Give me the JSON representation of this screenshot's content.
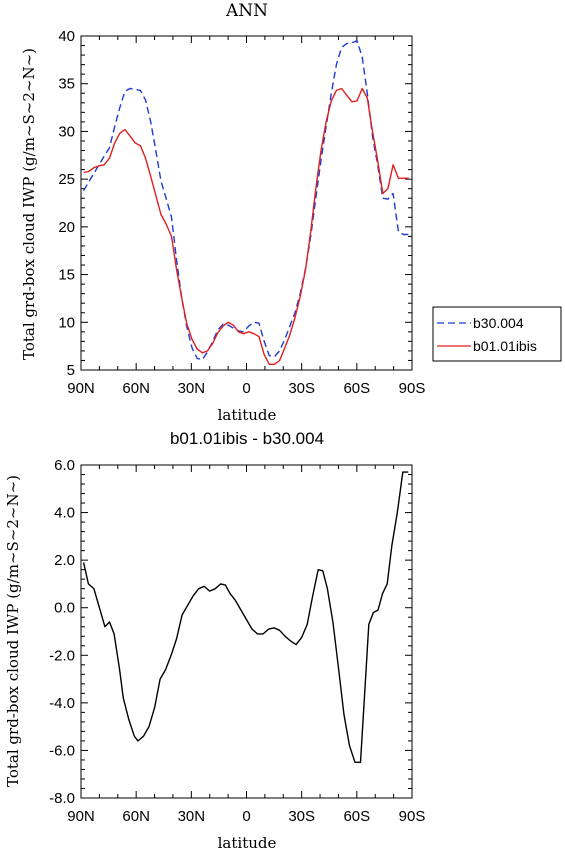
{
  "chart_data": [
    {
      "type": "line",
      "title": "ANN",
      "xlabel": "latitude",
      "ylabel": "Total grd-box cloud IWP (g/m~S~2~N~)",
      "xlim": [
        -90,
        90
      ],
      "ylim": [
        5,
        40
      ],
      "x_ticks": [
        -90,
        -60,
        -30,
        0,
        30,
        60,
        90
      ],
      "x_tick_labels": [
        "90N",
        "60N",
        "30N",
        "0",
        "30S",
        "60S",
        "90S"
      ],
      "y_ticks": [
        5,
        10,
        15,
        20,
        25,
        30,
        35,
        40
      ],
      "y_tick_labels": [
        "5",
        "10",
        "15",
        "20",
        "25",
        "30",
        "35",
        "40"
      ],
      "legend_position": "right",
      "series": [
        {
          "name": "b30.004",
          "color": "#1f3bd6",
          "dash": "dashed",
          "x": [
            -88.6,
            -85.8,
            -83.0,
            -80.2,
            -77.4,
            -74.5,
            -71.7,
            -68.9,
            -66.1,
            -63.3,
            -60.5,
            -57.7,
            -54.9,
            -52.1,
            -49.3,
            -46.5,
            -43.7,
            -40.8,
            -38.0,
            -35.2,
            -32.4,
            -29.6,
            -26.8,
            -24.0,
            -21.2,
            -18.4,
            -15.6,
            -12.8,
            -10.0,
            -7.2,
            -4.4,
            -1.6,
            1.2,
            4.0,
            6.8,
            9.6,
            12.4,
            15.2,
            18.0,
            20.8,
            23.6,
            26.4,
            29.2,
            32.1,
            34.9,
            37.7,
            40.5,
            43.3,
            46.1,
            48.9,
            51.7,
            54.5,
            57.3,
            60.1,
            62.9,
            65.7,
            68.5,
            71.3,
            74.1,
            76.9,
            79.7,
            82.6,
            85.4,
            88.2
          ],
          "y": [
            23.8,
            24.7,
            25.6,
            26.5,
            27.4,
            28.3,
            30.5,
            32.5,
            34.2,
            34.5,
            34.4,
            34.3,
            33.3,
            31.0,
            28.0,
            24.8,
            23.0,
            21.0,
            16.5,
            12.5,
            9.5,
            7.3,
            6.2,
            6.1,
            6.9,
            8.0,
            9.2,
            9.8,
            9.7,
            9.4,
            9.1,
            9.0,
            9.6,
            10.0,
            9.9,
            8.0,
            6.5,
            6.4,
            7.0,
            8.2,
            9.6,
            11.0,
            13.0,
            15.6,
            19.0,
            23.0,
            27.0,
            30.5,
            34.0,
            37.0,
            38.8,
            39.2,
            39.3,
            39.5,
            37.8,
            34.0,
            29.5,
            26.5,
            23.0,
            22.9,
            23.5,
            19.5,
            19.2,
            19.2
          ]
        },
        {
          "name": "b01.01ibis",
          "color": "#e02020",
          "dash": "solid",
          "x": [
            -88.6,
            -85.8,
            -83.0,
            -80.2,
            -77.4,
            -74.5,
            -71.7,
            -68.9,
            -66.1,
            -63.3,
            -60.5,
            -57.7,
            -54.9,
            -52.1,
            -49.3,
            -46.5,
            -43.7,
            -40.8,
            -38.0,
            -35.2,
            -32.4,
            -29.6,
            -26.8,
            -24.0,
            -21.2,
            -18.4,
            -15.6,
            -12.8,
            -10.0,
            -7.2,
            -4.4,
            -1.6,
            1.2,
            4.0,
            6.8,
            9.6,
            12.4,
            15.2,
            18.0,
            20.8,
            23.6,
            26.4,
            29.2,
            32.1,
            34.9,
            37.7,
            40.5,
            43.3,
            46.1,
            48.9,
            51.7,
            54.5,
            57.3,
            60.1,
            62.9,
            65.7,
            68.5,
            71.3,
            74.1,
            76.9,
            79.7,
            82.6,
            85.4,
            88.2
          ],
          "y": [
            25.7,
            25.8,
            26.2,
            26.4,
            26.5,
            27.2,
            28.8,
            29.8,
            30.2,
            29.5,
            28.8,
            28.5,
            27.2,
            25.3,
            23.3,
            21.3,
            20.3,
            19.0,
            15.5,
            12.5,
            9.8,
            8.2,
            7.2,
            6.8,
            7.0,
            7.8,
            8.9,
            9.6,
            10.0,
            9.7,
            9.0,
            8.8,
            9.0,
            8.8,
            8.5,
            6.6,
            5.6,
            5.6,
            6.0,
            7.3,
            8.7,
            10.5,
            12.7,
            15.5,
            19.5,
            24.0,
            28.0,
            31.0,
            33.2,
            34.3,
            34.5,
            33.8,
            33.1,
            33.2,
            34.5,
            33.5,
            30.0,
            27.0,
            23.5,
            24.0,
            26.5,
            25.1,
            25.1,
            25.1
          ]
        }
      ]
    },
    {
      "type": "line",
      "title": "b01.01ibis - b30.004",
      "xlabel": "latitude",
      "ylabel": "Total grd-box cloud IWP (g/m~S~2~N~)",
      "xlim": [
        -90,
        90
      ],
      "ylim": [
        -8,
        6
      ],
      "x_ticks": [
        -90,
        -60,
        -30,
        0,
        30,
        60,
        90
      ],
      "x_tick_labels": [
        "90N",
        "60N",
        "30N",
        "0",
        "30S",
        "60S",
        "90S"
      ],
      "y_ticks": [
        -8,
        -6,
        -4,
        -2,
        0,
        2,
        4,
        6
      ],
      "y_tick_labels": [
        "-8.0",
        "-6.0",
        "-4.0",
        "-2.0",
        "0.0",
        "2.0",
        "4.0",
        "6.0"
      ],
      "series": [
        {
          "color": "#000000",
          "x": [
            -88.6,
            -86.0,
            -83.0,
            -80.0,
            -77.0,
            -74.5,
            -72.0,
            -69.0,
            -67.0,
            -64.0,
            -61.0,
            -59.0,
            -56.0,
            -53.0,
            -50.0,
            -47.0,
            -44.0,
            -41.0,
            -38.0,
            -35.0,
            -32.0,
            -29.0,
            -26.0,
            -23.0,
            -20.0,
            -17.0,
            -14.0,
            -11.5,
            -9.0,
            -6.0,
            -3.0,
            0.0,
            3.0,
            6.0,
            9.0,
            12.0,
            15.0,
            18.0,
            21.0,
            24.0,
            27.0,
            30.0,
            33.0,
            36.0,
            39.0,
            41.5,
            44.0,
            47.0,
            50.0,
            53.0,
            56.0,
            59.0,
            62.0,
            64.5,
            66.5,
            69.0,
            71.5,
            74.0,
            76.5,
            79.0,
            82.0,
            85.0,
            88.0
          ],
          "y": [
            1.9,
            1.0,
            0.8,
            0.0,
            -0.8,
            -0.6,
            -1.1,
            -2.6,
            -3.8,
            -4.7,
            -5.4,
            -5.6,
            -5.4,
            -5.0,
            -4.2,
            -3.0,
            -2.6,
            -2.0,
            -1.3,
            -0.3,
            0.1,
            0.5,
            0.8,
            0.9,
            0.7,
            0.8,
            1.0,
            0.95,
            0.6,
            0.3,
            -0.1,
            -0.5,
            -0.9,
            -1.1,
            -1.1,
            -0.9,
            -0.85,
            -0.95,
            -1.2,
            -1.4,
            -1.55,
            -1.25,
            -0.7,
            0.5,
            1.6,
            1.55,
            0.8,
            -0.6,
            -2.5,
            -4.5,
            -5.8,
            -6.5,
            -6.5,
            -3.3,
            -0.7,
            -0.2,
            -0.1,
            0.6,
            1.0,
            2.6,
            4.0,
            5.7,
            5.7
          ]
        }
      ]
    }
  ]
}
